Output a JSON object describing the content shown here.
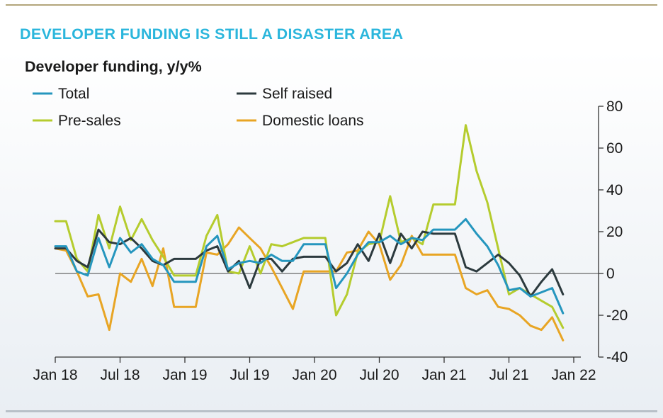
{
  "headline": "DEVELOPER FUNDING IS STILL A DISASTER AREA",
  "chart_data": {
    "type": "line",
    "title": "Developer funding, y/y%",
    "xlabel": "",
    "ylabel": "",
    "ylim": [
      -40,
      80
    ],
    "yticks": [
      80,
      60,
      40,
      20,
      0,
      -20,
      -40
    ],
    "xticks": [
      "Jan 18",
      "Jul 18",
      "Jan 19",
      "Jul 19",
      "Jan 20",
      "Jul 20",
      "Jan 21",
      "Jul 21",
      "Jan 22"
    ],
    "x_unit": "months since Jan 2018",
    "series": [
      {
        "name": "Total",
        "color": "#2596be",
        "values": [
          13,
          13,
          1,
          -1,
          17,
          3,
          17,
          10,
          14,
          7,
          4,
          -4,
          -4,
          -4,
          13,
          18,
          2,
          5,
          6,
          5,
          9,
          6,
          6,
          14,
          14,
          14,
          -7,
          0,
          9,
          15,
          15,
          18,
          14,
          17,
          16,
          21,
          21,
          21,
          26,
          19,
          13,
          4,
          -8,
          -7,
          -11,
          -9,
          -7,
          -19
        ]
      },
      {
        "name": "Self raised",
        "color": "#2c3a3e",
        "values": [
          12,
          12,
          6,
          3,
          21,
          15,
          14,
          17,
          12,
          6,
          4,
          7,
          7,
          7,
          11,
          13,
          1,
          6,
          -7,
          7,
          7,
          1,
          7,
          8,
          8,
          8,
          1,
          5,
          14,
          6,
          19,
          5,
          19,
          12,
          20,
          19,
          19,
          19,
          3,
          1,
          5,
          9,
          5,
          -1,
          -11,
          -4,
          2,
          -10
        ]
      },
      {
        "name": "Pre-sales",
        "color": "#b5cc2e",
        "values": [
          25,
          25,
          7,
          1,
          28,
          12,
          32,
          16,
          26,
          16,
          8,
          -1,
          -1,
          -1,
          18,
          28,
          1,
          0,
          13,
          0,
          14,
          13,
          15,
          17,
          17,
          17,
          -20,
          -10,
          10,
          14,
          15,
          37,
          15,
          17,
          14,
          33,
          33,
          33,
          71,
          49,
          34,
          12,
          -10,
          -7,
          -10,
          -13,
          -16,
          -26
        ]
      },
      {
        "name": "Domestic loans",
        "color": "#e8a524",
        "values": [
          12,
          11,
          1,
          -11,
          -10,
          -27,
          0,
          -4,
          7,
          -6,
          12,
          -16,
          -16,
          -16,
          10,
          9,
          14,
          22,
          17,
          12,
          3,
          -7,
          -17,
          1,
          1,
          1,
          1,
          10,
          11,
          20,
          14,
          -3,
          4,
          18,
          9,
          9,
          9,
          9,
          -7,
          -10,
          -8,
          -16,
          -17,
          -20,
          -25,
          -27,
          -21,
          -32
        ]
      }
    ],
    "zero_line": true,
    "grid": false,
    "legend_position": "top-left"
  }
}
